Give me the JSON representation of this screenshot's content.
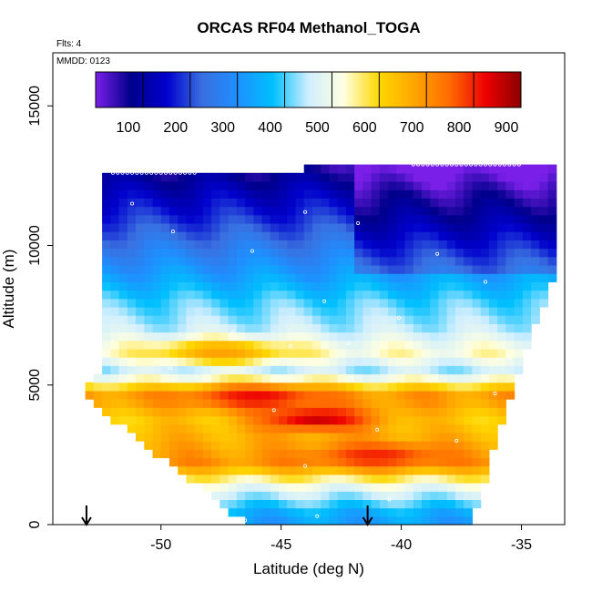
{
  "chart_data": {
    "type": "heatmap",
    "title": "ORCAS RF04 Methanol_TOGA",
    "flights_label": "Flts: 4",
    "date_label": "MMDD: 0123",
    "xlabel": "Latitude (deg N)",
    "ylabel": "Altitude (m)",
    "xlim": [
      -54.5,
      -33.2
    ],
    "ylim": [
      0,
      16900
    ],
    "x_ticks": [
      -50,
      -45,
      -40,
      -35
    ],
    "x_tick_labels": [
      "-50",
      "-45",
      "-40",
      "-35"
    ],
    "y_ticks": [
      0,
      5000,
      10000,
      15000
    ],
    "y_tick_labels": [
      "0",
      "5000",
      "10000",
      "15000"
    ],
    "colorbar": {
      "range": [
        0,
        900
      ],
      "ticks": [
        100,
        200,
        300,
        400,
        500,
        600,
        700,
        800,
        900
      ],
      "tick_labels": [
        "100",
        "200",
        "300",
        "400",
        "500",
        "600",
        "700",
        "800",
        "900"
      ],
      "colors": [
        "#7a1fe8",
        "#00008b",
        "#0000cd",
        "#3a6fe0",
        "#1e90ff",
        "#00bfff",
        "#cfeeff",
        "#ffffe0",
        "#ffd700",
        "#ffa500",
        "#ff6a00",
        "#ee0000",
        "#8b0000"
      ]
    },
    "arrows_latitude": [
      -53.1,
      -41.4
    ],
    "layers": [
      {
        "alt": 12800,
        "value": 60
      },
      {
        "alt": 12000,
        "value": 120
      },
      {
        "alt": 11000,
        "value": 180
      },
      {
        "alt": 10000,
        "value": 250
      },
      {
        "alt": 9000,
        "value": 320
      },
      {
        "alt": 8000,
        "value": 400
      },
      {
        "alt": 7000,
        "value": 450
      },
      {
        "alt": 6200,
        "value": 530
      },
      {
        "alt": 5500,
        "value": 440
      },
      {
        "alt": 4600,
        "value": 700
      },
      {
        "alt": 3800,
        "value": 620
      },
      {
        "alt": 3000,
        "value": 660
      },
      {
        "alt": 2200,
        "value": 700
      },
      {
        "alt": 1500,
        "value": 520
      },
      {
        "alt": 900,
        "value": 420
      },
      {
        "alt": 300,
        "value": 330
      }
    ],
    "hotspots": [
      {
        "lat": -46.0,
        "alt": 4600,
        "value": 820
      },
      {
        "lat": -43.5,
        "alt": 3800,
        "value": 850
      },
      {
        "lat": -41.0,
        "alt": 2500,
        "value": 800
      },
      {
        "lat": -47.5,
        "alt": 6200,
        "value": 680
      }
    ]
  }
}
